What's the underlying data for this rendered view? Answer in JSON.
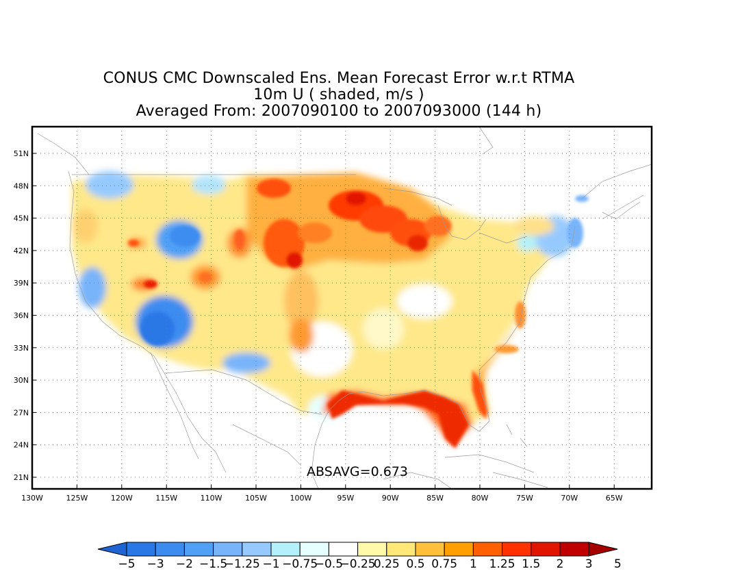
{
  "title": {
    "line1": "CONUS CMC Downscaled Ens. Mean Forecast Error w.r.t RTMA",
    "line2": "10m U ( shaded, m/s )",
    "line3": "Averaged From: 2007090100 to 2007093000 (144 h)"
  },
  "map": {
    "lon_ticks": [
      "130W",
      "125W",
      "120W",
      "115W",
      "110W",
      "105W",
      "100W",
      "95W",
      "90W",
      "85W",
      "80W",
      "75W",
      "70W",
      "65W"
    ],
    "lat_ticks": [
      "51N",
      "48N",
      "45N",
      "42N",
      "39N",
      "36N",
      "33N",
      "30N",
      "27N",
      "24N",
      "21N"
    ],
    "annotation": "ABSAVG=0.673",
    "grid": true
  },
  "colorbar": {
    "labels": [
      "−5",
      "−3",
      "−2",
      "−1.5",
      "−1.25",
      "−1",
      "−0.75",
      "−0.5",
      "−0.25",
      "0.25",
      "0.5",
      "0.75",
      "1",
      "1.25",
      "1.5",
      "2",
      "3",
      "5"
    ],
    "colors": [
      "#1e64d2",
      "#2a78e6",
      "#3c8cf0",
      "#50a0f5",
      "#78b4fa",
      "#96caff",
      "#b4f0fa",
      "#e6ffff",
      "#ffffff",
      "#fffaaa",
      "#ffe878",
      "#ffc03c",
      "#ffa000",
      "#ff6000",
      "#ff3200",
      "#e11400",
      "#c00000",
      "#a50000"
    ]
  }
}
